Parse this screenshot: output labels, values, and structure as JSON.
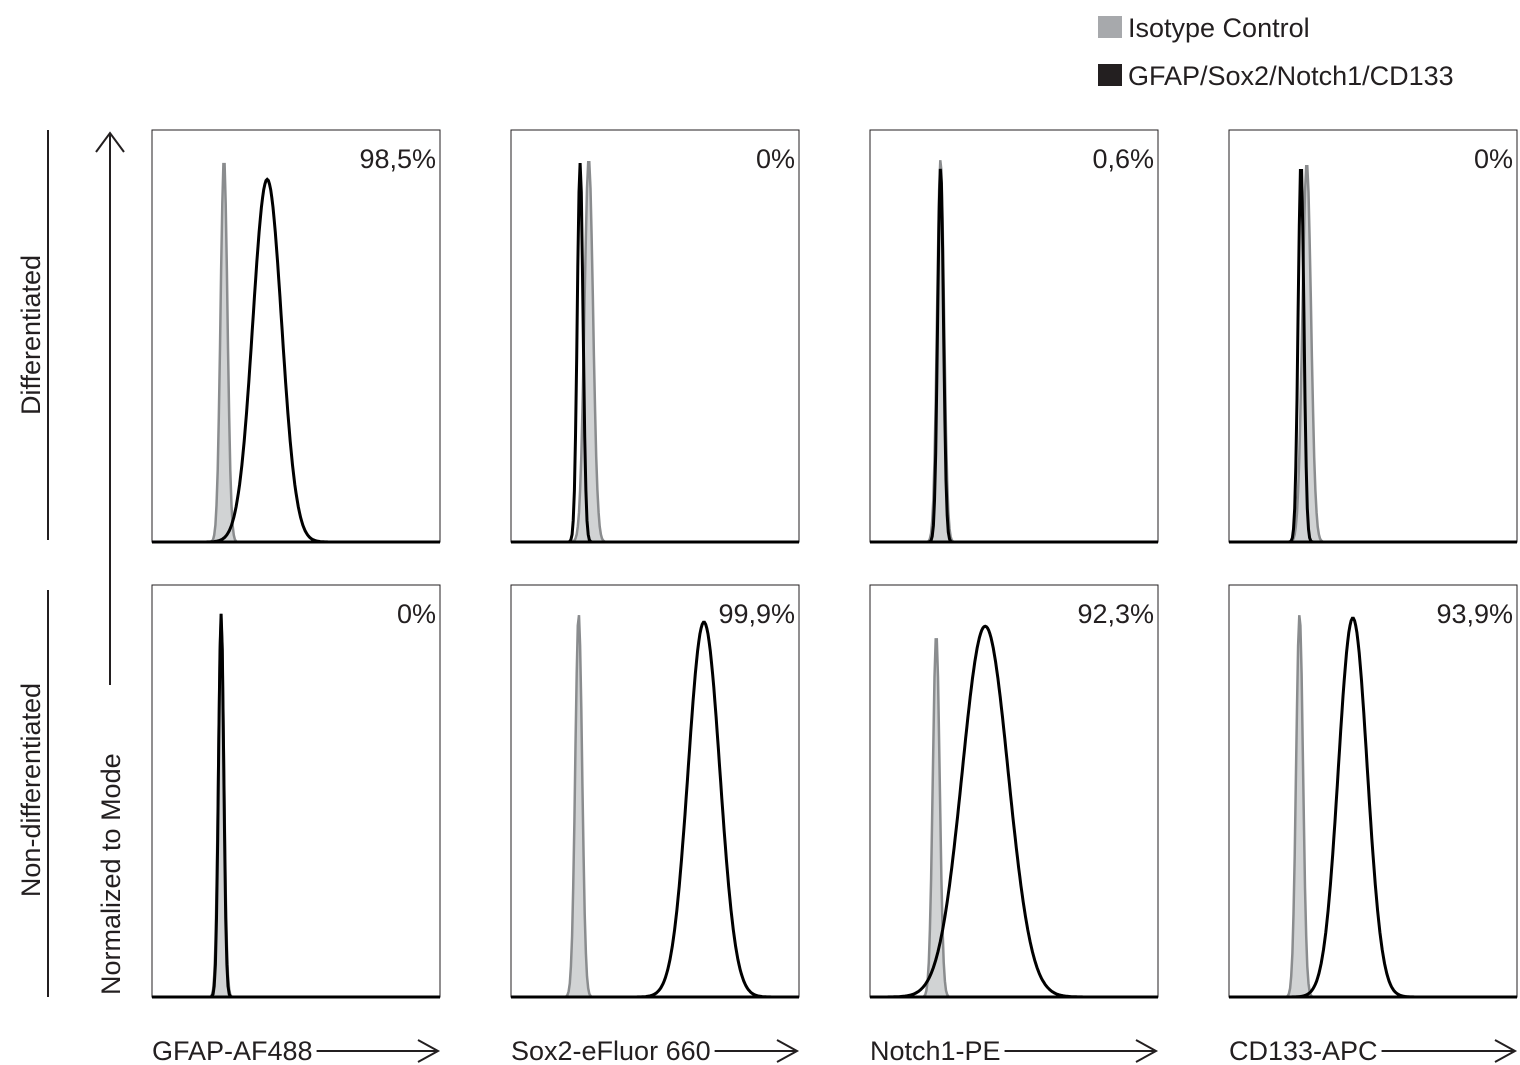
{
  "legend": [
    {
      "label": "Isotype Control",
      "color": "#a7a9ac"
    },
    {
      "label": "GFAP/Sox2/Notch1/CD133",
      "color": "#231f20"
    }
  ],
  "rows": [
    "Differentiated",
    "Non-differentiated"
  ],
  "y_axis_label": "Normalized to Mode",
  "columns": [
    {
      "marker": "GFAP-AF488",
      "percents": [
        "98,5%",
        "0%"
      ]
    },
    {
      "marker": "Sox2-eFluor 660",
      "percents": [
        "0%",
        "99,9%"
      ]
    },
    {
      "marker": "Notch1-PE",
      "percents": [
        "0,6%",
        "92,3%"
      ]
    },
    {
      "marker": "CD133-APC",
      "percents": [
        "0%",
        "93,9%"
      ]
    }
  ]
}
